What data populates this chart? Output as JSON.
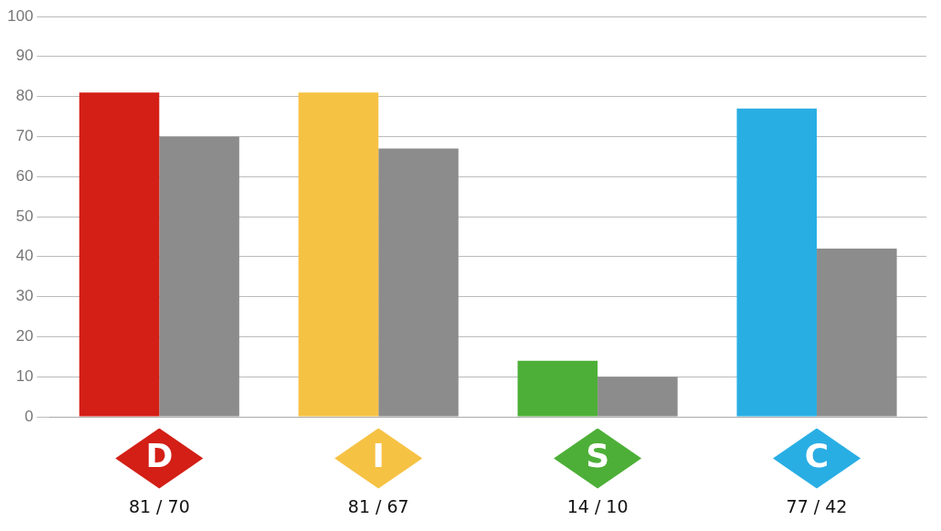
{
  "chart_data": {
    "type": "bar",
    "categories": [
      "D",
      "I",
      "S",
      "C"
    ],
    "series": [
      {
        "colors": [
          "#d31f16",
          "#f6c244",
          "#4daf37",
          "#29aee4"
        ],
        "values": [
          81,
          81,
          14,
          77
        ]
      },
      {
        "color": "#8c8c8c",
        "values": [
          70,
          67,
          10,
          42
        ]
      }
    ],
    "ylim": [
      0,
      100
    ],
    "yticks": [
      0,
      10,
      20,
      30,
      40,
      50,
      60,
      70,
      80,
      90,
      100
    ],
    "grid": "y",
    "legend": false,
    "annotations": [
      "81 / 70",
      "81 / 67",
      "14 / 10",
      "77 / 42"
    ]
  }
}
